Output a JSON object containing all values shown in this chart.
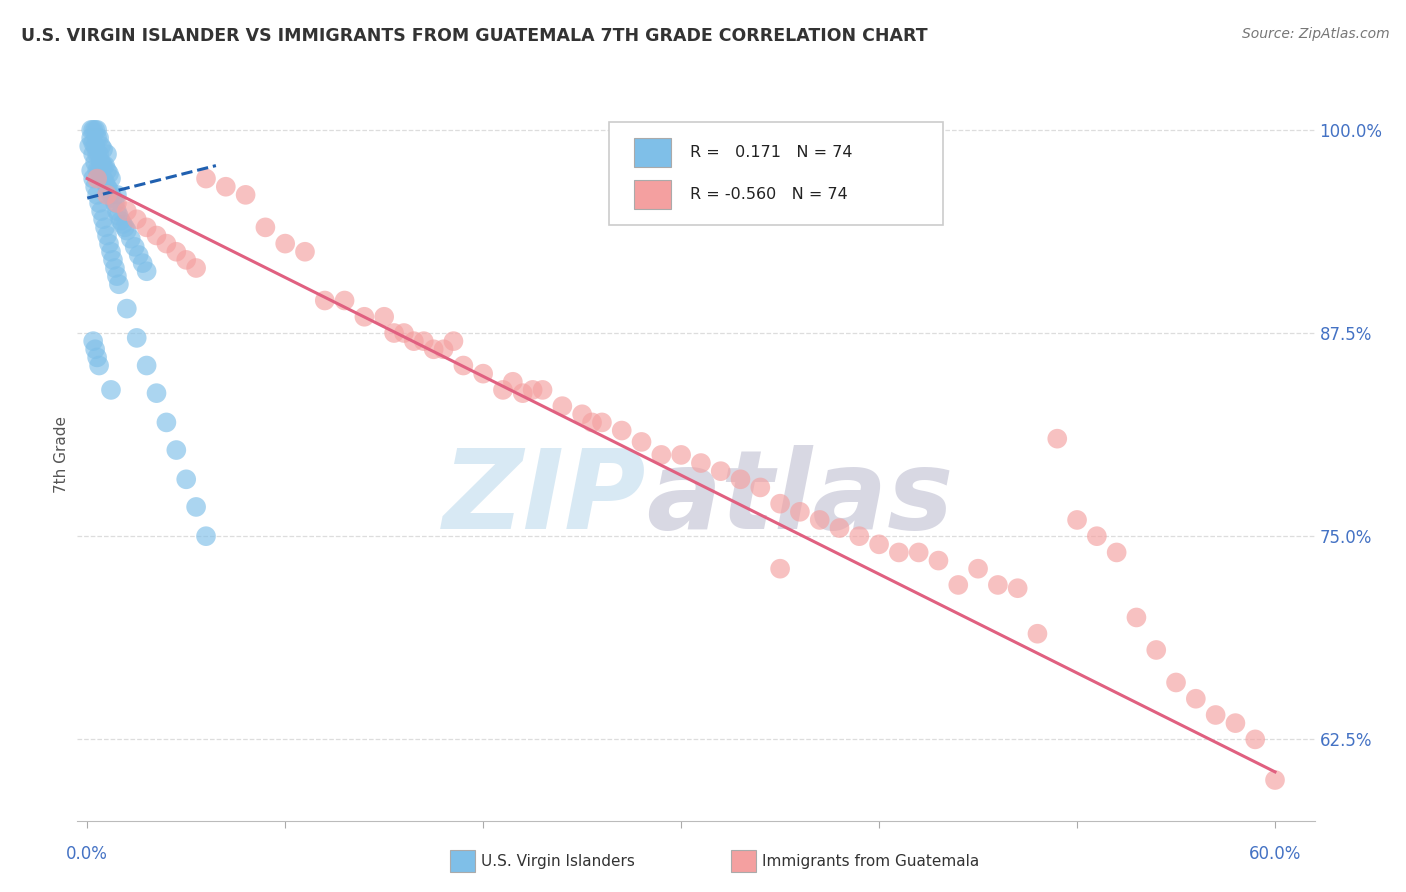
{
  "title": "U.S. VIRGIN ISLANDER VS IMMIGRANTS FROM GUATEMALA 7TH GRADE CORRELATION CHART",
  "source": "Source: ZipAtlas.com",
  "ylabel": "7th Grade",
  "legend_blue_r": "0.171",
  "legend_blue_n": "74",
  "legend_pink_r": "-0.560",
  "legend_pink_n": "74",
  "blue_color": "#7fbfe8",
  "pink_color": "#f4a0a0",
  "blue_line_color": "#2060b0",
  "pink_line_color": "#e06080",
  "blue_scatter_x": [
    0.001,
    0.002,
    0.002,
    0.003,
    0.003,
    0.003,
    0.004,
    0.004,
    0.004,
    0.005,
    0.005,
    0.005,
    0.005,
    0.006,
    0.006,
    0.006,
    0.007,
    0.007,
    0.007,
    0.008,
    0.008,
    0.008,
    0.009,
    0.009,
    0.01,
    0.01,
    0.01,
    0.011,
    0.011,
    0.012,
    0.012,
    0.013,
    0.014,
    0.015,
    0.015,
    0.016,
    0.017,
    0.018,
    0.019,
    0.02,
    0.022,
    0.024,
    0.026,
    0.028,
    0.03,
    0.002,
    0.003,
    0.004,
    0.005,
    0.006,
    0.007,
    0.008,
    0.009,
    0.01,
    0.011,
    0.012,
    0.013,
    0.014,
    0.015,
    0.016,
    0.02,
    0.025,
    0.03,
    0.035,
    0.04,
    0.045,
    0.05,
    0.055,
    0.06,
    0.003,
    0.004,
    0.005,
    0.006,
    0.012
  ],
  "blue_scatter_y": [
    0.99,
    0.995,
    1.0,
    0.985,
    0.992,
    1.0,
    0.98,
    0.99,
    1.0,
    0.975,
    0.985,
    0.995,
    1.0,
    0.975,
    0.985,
    0.995,
    0.972,
    0.98,
    0.99,
    0.97,
    0.978,
    0.988,
    0.968,
    0.978,
    0.965,
    0.975,
    0.985,
    0.963,
    0.973,
    0.96,
    0.97,
    0.958,
    0.955,
    0.95,
    0.96,
    0.947,
    0.944,
    0.942,
    0.94,
    0.938,
    0.933,
    0.928,
    0.923,
    0.918,
    0.913,
    0.975,
    0.97,
    0.965,
    0.96,
    0.955,
    0.95,
    0.945,
    0.94,
    0.935,
    0.93,
    0.925,
    0.92,
    0.915,
    0.91,
    0.905,
    0.89,
    0.872,
    0.855,
    0.838,
    0.82,
    0.803,
    0.785,
    0.768,
    0.75,
    0.87,
    0.865,
    0.86,
    0.855,
    0.84
  ],
  "pink_scatter_x": [
    0.005,
    0.01,
    0.015,
    0.02,
    0.025,
    0.03,
    0.035,
    0.04,
    0.045,
    0.05,
    0.055,
    0.06,
    0.07,
    0.08,
    0.09,
    0.1,
    0.11,
    0.12,
    0.13,
    0.14,
    0.15,
    0.155,
    0.16,
    0.165,
    0.17,
    0.175,
    0.18,
    0.185,
    0.19,
    0.2,
    0.21,
    0.215,
    0.22,
    0.225,
    0.23,
    0.24,
    0.25,
    0.255,
    0.26,
    0.27,
    0.28,
    0.29,
    0.3,
    0.31,
    0.32,
    0.33,
    0.34,
    0.35,
    0.36,
    0.37,
    0.38,
    0.39,
    0.4,
    0.41,
    0.42,
    0.43,
    0.44,
    0.45,
    0.46,
    0.47,
    0.48,
    0.49,
    0.5,
    0.51,
    0.52,
    0.53,
    0.54,
    0.55,
    0.56,
    0.57,
    0.58,
    0.59,
    0.6,
    0.35
  ],
  "pink_scatter_y": [
    0.97,
    0.96,
    0.955,
    0.95,
    0.945,
    0.94,
    0.935,
    0.93,
    0.925,
    0.92,
    0.915,
    0.97,
    0.965,
    0.96,
    0.94,
    0.93,
    0.925,
    0.895,
    0.895,
    0.885,
    0.885,
    0.875,
    0.875,
    0.87,
    0.87,
    0.865,
    0.865,
    0.87,
    0.855,
    0.85,
    0.84,
    0.845,
    0.838,
    0.84,
    0.84,
    0.83,
    0.825,
    0.82,
    0.82,
    0.815,
    0.808,
    0.8,
    0.8,
    0.795,
    0.79,
    0.785,
    0.78,
    0.77,
    0.765,
    0.76,
    0.755,
    0.75,
    0.745,
    0.74,
    0.74,
    0.735,
    0.72,
    0.73,
    0.72,
    0.718,
    0.69,
    0.81,
    0.76,
    0.75,
    0.74,
    0.7,
    0.68,
    0.66,
    0.65,
    0.64,
    0.635,
    0.625,
    0.6,
    0.73
  ],
  "blue_trendline_x": [
    0.0,
    0.065
  ],
  "blue_trendline_y": [
    0.958,
    0.978
  ],
  "pink_trendline_x": [
    0.0,
    0.6
  ],
  "pink_trendline_y": [
    0.97,
    0.605
  ],
  "xlim": [
    -0.005,
    0.62
  ],
  "ylim": [
    0.575,
    1.025
  ],
  "y_ticks": [
    0.625,
    0.75,
    0.875,
    1.0
  ],
  "y_tick_labels": [
    "62.5%",
    "75.0%",
    "87.5%",
    "100.0%"
  ],
  "x_ticks": [
    0.0,
    0.1,
    0.2,
    0.3,
    0.4,
    0.5,
    0.6
  ],
  "watermark_zip_color": "#c8e0f0",
  "watermark_atlas_color": "#c8c8d8",
  "background_color": "#ffffff",
  "grid_color": "#dddddd",
  "title_color": "#333333",
  "source_color": "#777777",
  "tick_color": "#4472c4",
  "ylabel_color": "#555555"
}
